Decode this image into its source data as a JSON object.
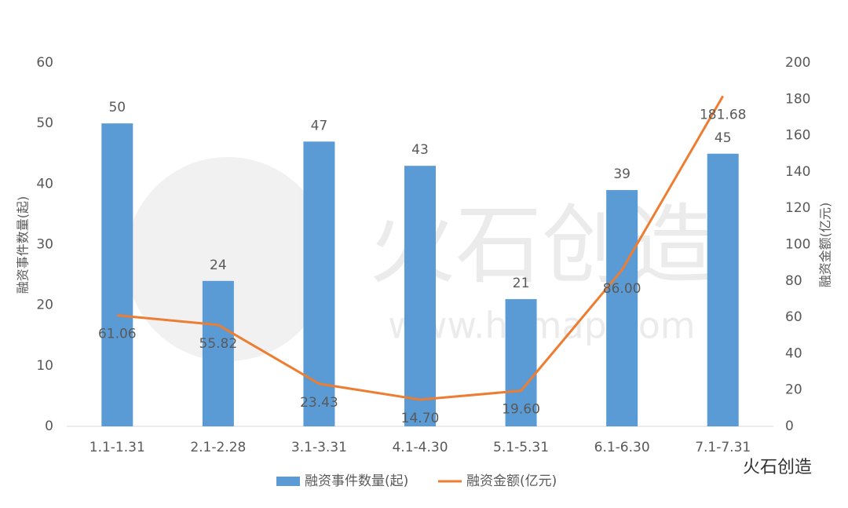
{
  "chart_data": {
    "type": "bar",
    "categories": [
      "1.1-1.31",
      "2.1-2.28",
      "3.1-3.31",
      "4.1-4.30",
      "5.1-5.31",
      "6.1-6.30",
      "7.1-7.31"
    ],
    "series": [
      {
        "name": "融资事件数量(起)",
        "type": "bar",
        "color": "#5b9bd5",
        "values": [
          50,
          24,
          47,
          43,
          21,
          39,
          45
        ]
      },
      {
        "name": "融资金额(亿元)",
        "type": "line",
        "axis": "y2",
        "color": "#ed7d31",
        "values": [
          61.06,
          55.82,
          23.43,
          14.7,
          19.6,
          86,
          181.68
        ],
        "value_labels": [
          "61.06",
          "55.82",
          "23.43",
          "14.70",
          "19.60",
          "86.00",
          "181.68"
        ]
      }
    ],
    "ylabel": "融资事件数量(起)",
    "y2label": "融资金额(亿元)",
    "ylim": [
      0,
      60
    ],
    "yticks": [
      0,
      10,
      20,
      30,
      40,
      50,
      60
    ],
    "y2lim": [
      0,
      200
    ],
    "y2ticks": [
      0,
      20,
      40,
      60,
      80,
      100,
      120,
      140,
      160,
      180,
      200
    ],
    "legend": "bottom"
  },
  "watermark": {
    "brand": "火石创造",
    "url": "www.hsmap.com"
  },
  "logo": "火石创造"
}
